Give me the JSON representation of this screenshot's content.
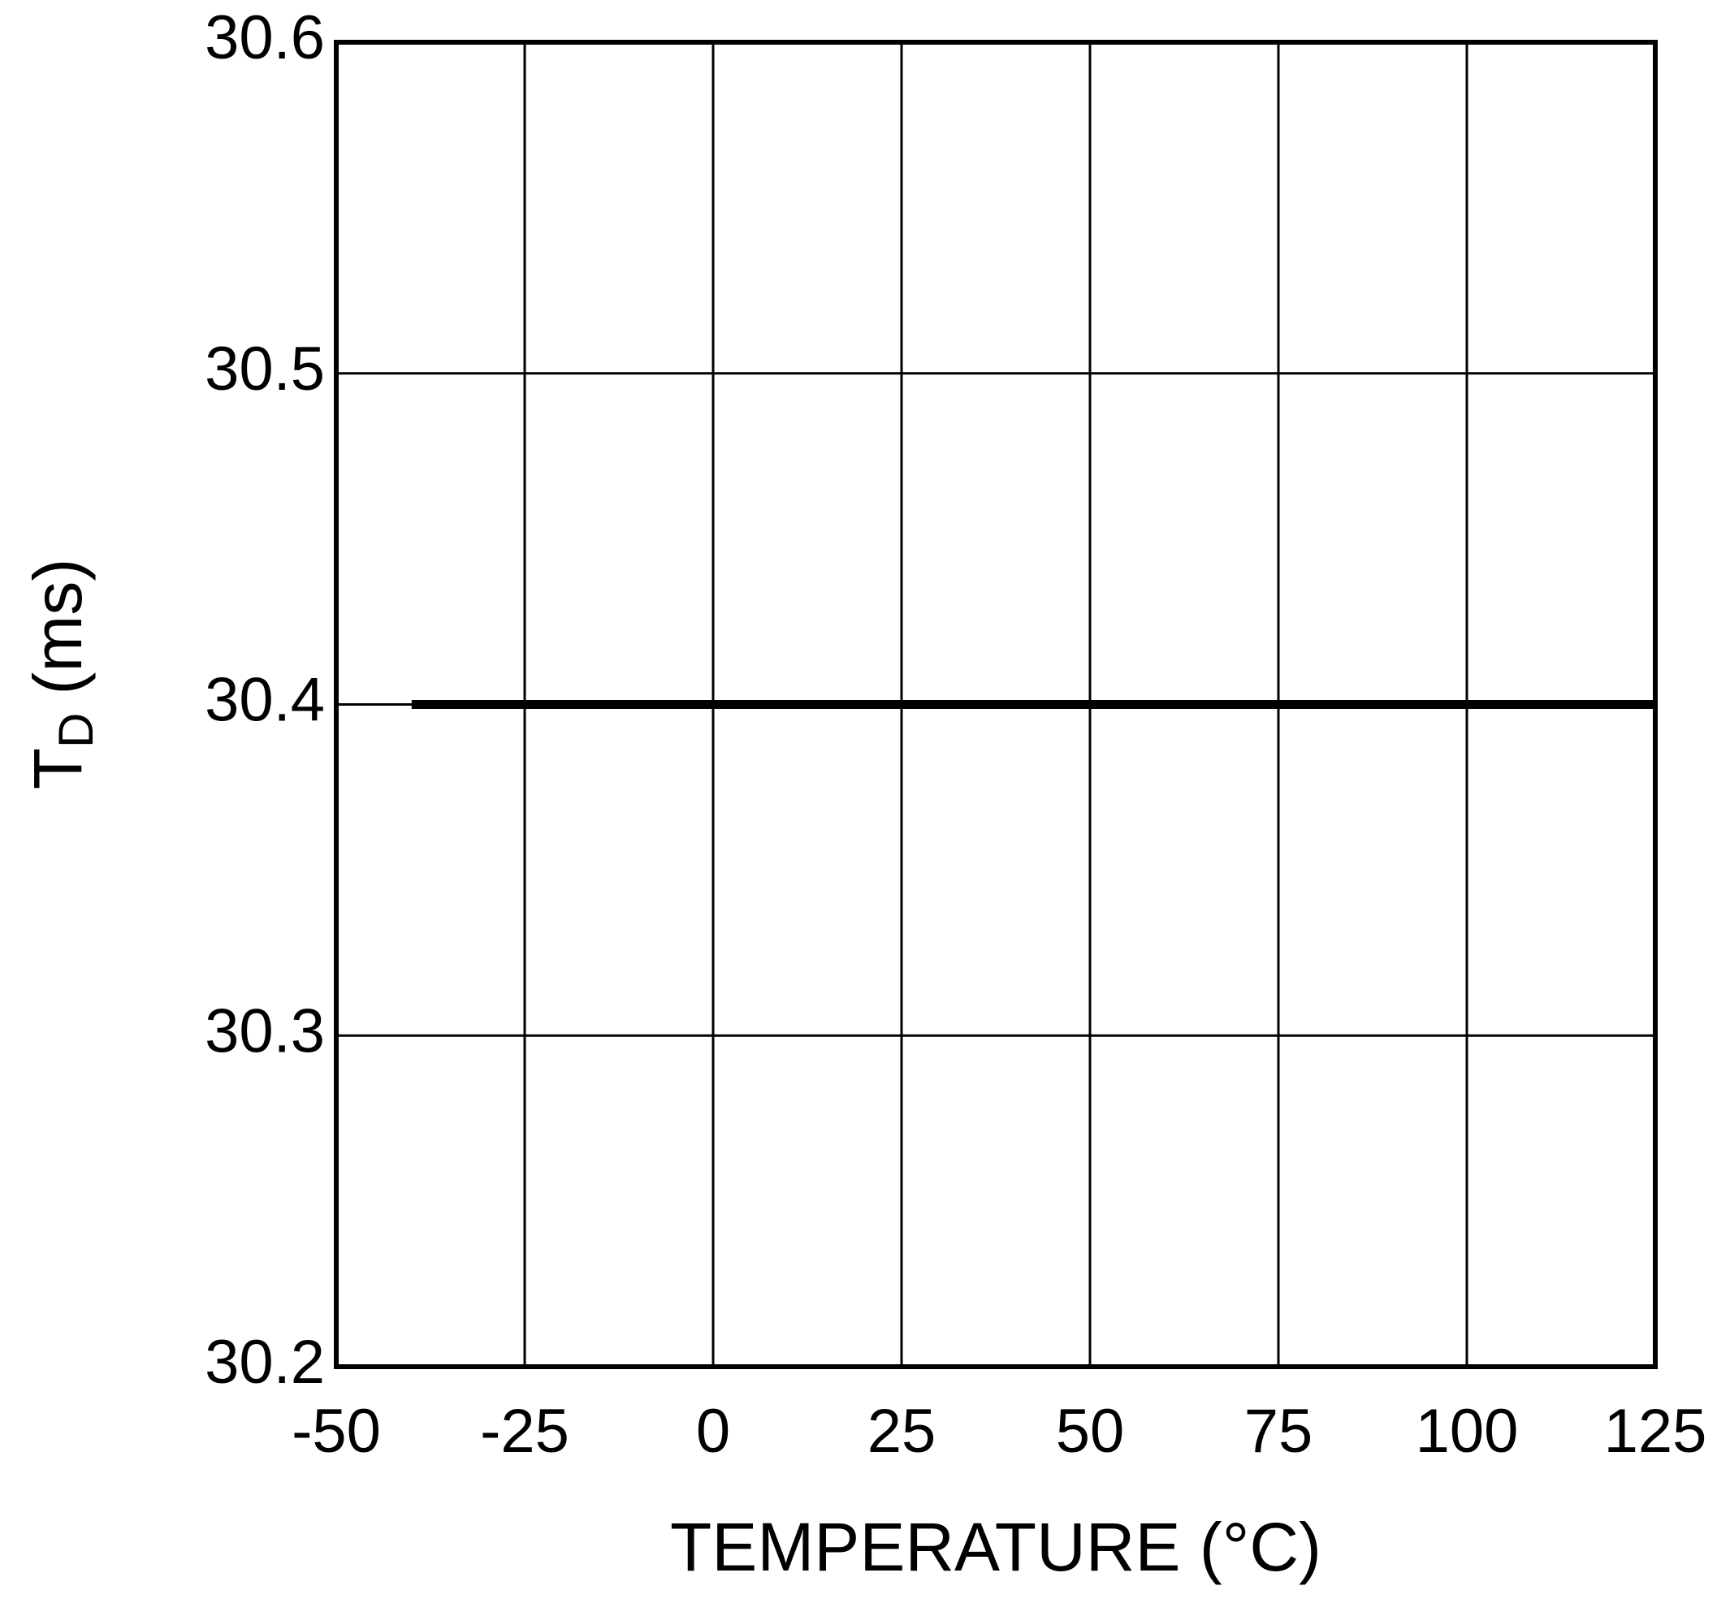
{
  "chart_data": {
    "type": "line",
    "x_label": "TEMPERATURE (°C)",
    "y_label": {
      "main": "T",
      "subscript": "D",
      "unit": "(ms)"
    },
    "x": [
      -40,
      125
    ],
    "series": [
      {
        "color": "#000000",
        "values": [
          30.4,
          30.4
        ]
      }
    ],
    "xlim": [
      -50,
      125
    ],
    "xticks": [
      -50,
      -25,
      0,
      25,
      50,
      75,
      100,
      125
    ],
    "ylim": [
      30.2,
      30.6
    ],
    "yticks": [
      30.2,
      30.3,
      30.4,
      30.5,
      30.6
    ],
    "grid": true
  }
}
